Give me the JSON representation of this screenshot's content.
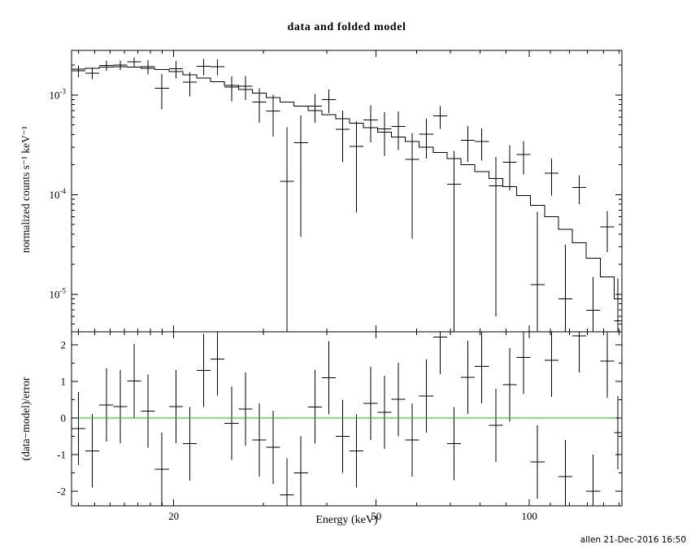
{
  "header": {
    "title": "data and folded model"
  },
  "footer": {
    "credit": "allen 21-Dec-2016 16:50"
  },
  "chart_data": {
    "type": "line",
    "title": "data and folded model",
    "xlabel": "Energy (keV)",
    "ylabel_top": "normalized counts s⁻¹ keV⁻¹",
    "ylabel_bottom": "(data−model)/error",
    "x_scale": "log",
    "xlim": [
      12.6,
      152
    ],
    "x_ticks_labeled": [
      20,
      50,
      100
    ],
    "x_ticks_minor": [
      13,
      14,
      15,
      16,
      17,
      18,
      19,
      30,
      40,
      60,
      70,
      80,
      90,
      110,
      120,
      130,
      140,
      150
    ],
    "top_panel": {
      "y_scale": "log",
      "ylim": [
        4.2e-06,
        0.0028
      ],
      "y_tick_exponents": [
        -3,
        -4,
        -5
      ]
    },
    "bottom_panel": {
      "y_scale": "linear",
      "ylim": [
        -2.4,
        2.35
      ],
      "y_ticks_labeled": [
        2,
        1,
        0,
        -1,
        -2
      ],
      "y_ticks_minor": [
        -1.5,
        -0.5,
        0.5,
        1.5
      ],
      "zero_line_color": "#00cc00",
      "residual_error": 1
    },
    "colors": {
      "data": "#000000",
      "model": "#000000",
      "axes": "#000000",
      "background": "#ffffff"
    },
    "bins": [
      {
        "e_lo": 12.6,
        "e_hi": 13.42,
        "model": 0.00182,
        "rate": 0.00175,
        "err": 0.000237
      },
      {
        "e_lo": 13.42,
        "e_hi": 14.29,
        "model": 0.00186,
        "rate": 0.00166,
        "err": 0.000223
      },
      {
        "e_lo": 14.29,
        "e_hi": 15.22,
        "model": 0.0019,
        "rate": 0.00198,
        "err": 0.000228
      },
      {
        "e_lo": 15.22,
        "e_hi": 16.21,
        "model": 0.00192,
        "rate": 0.00199,
        "err": 0.00023
      },
      {
        "e_lo": 16.21,
        "e_hi": 17.26,
        "model": 0.0019,
        "rate": 0.00215,
        "err": 0.000247
      },
      {
        "e_lo": 17.26,
        "e_hi": 18.38,
        "model": 0.00186,
        "rate": 0.00192,
        "err": 0.000316
      },
      {
        "e_lo": 18.38,
        "e_hi": 19.58,
        "model": 0.0018,
        "rate": 0.00117,
        "err": 0.00045
      },
      {
        "e_lo": 19.58,
        "e_hi": 20.85,
        "model": 0.00172,
        "rate": 0.00183,
        "err": 0.000361
      },
      {
        "e_lo": 20.85,
        "e_hi": 22.2,
        "model": 0.0016,
        "rate": 0.00134,
        "err": 0.000368
      },
      {
        "e_lo": 22.2,
        "e_hi": 23.64,
        "model": 0.00148,
        "rate": 0.00194,
        "err": 0.000355
      },
      {
        "e_lo": 23.64,
        "e_hi": 25.18,
        "model": 0.00136,
        "rate": 0.00193,
        "err": 0.000354
      },
      {
        "e_lo": 25.18,
        "e_hi": 26.81,
        "model": 0.00125,
        "rate": 0.0012,
        "err": 0.000338
      },
      {
        "e_lo": 26.81,
        "e_hi": 28.55,
        "model": 0.00114,
        "rate": 0.00122,
        "err": 0.000331
      },
      {
        "e_lo": 28.55,
        "e_hi": 30.41,
        "model": 0.00104,
        "rate": 0.000847,
        "err": 0.000322
      },
      {
        "e_lo": 30.41,
        "e_hi": 32.38,
        "model": 0.00094,
        "rate": 0.000692,
        "err": 0.00031
      },
      {
        "e_lo": 32.38,
        "e_hi": 34.48,
        "model": 0.00085,
        "rate": 0.000136,
        "err": 0.00034
      },
      {
        "e_lo": 34.48,
        "e_hi": 36.72,
        "model": 0.00077,
        "rate": 0.000331,
        "err": 0.000293
      },
      {
        "e_lo": 36.72,
        "e_hi": 39.11,
        "model": 0.0007,
        "rate": 0.000776,
        "err": 0.000252
      },
      {
        "e_lo": 39.11,
        "e_hi": 41.65,
        "model": 0.000635,
        "rate": 0.0009,
        "err": 0.000241
      },
      {
        "e_lo": 41.65,
        "e_hi": 44.35,
        "model": 0.000575,
        "rate": 0.000454,
        "err": 0.000242
      },
      {
        "e_lo": 44.35,
        "e_hi": 47.23,
        "model": 0.00052,
        "rate": 0.000305,
        "err": 0.000239
      },
      {
        "e_lo": 47.23,
        "e_hi": 50.3,
        "model": 0.00047,
        "rate": 0.00056,
        "err": 0.000226
      },
      {
        "e_lo": 50.3,
        "e_hi": 53.57,
        "model": 0.000425,
        "rate": 0.000457,
        "err": 0.000213
      },
      {
        "e_lo": 53.57,
        "e_hi": 57.05,
        "model": 0.00038,
        "rate": 0.000481,
        "err": 0.000201
      },
      {
        "e_lo": 57.05,
        "e_hi": 60.76,
        "model": 0.00034,
        "rate": 0.000226,
        "err": 0.00019
      },
      {
        "e_lo": 60.76,
        "e_hi": 64.71,
        "model": 0.0003,
        "rate": 0.000404,
        "err": 0.000174
      },
      {
        "e_lo": 64.71,
        "e_hi": 68.91,
        "model": 0.000265,
        "rate": 0.000615,
        "err": 0.000159
      },
      {
        "e_lo": 68.91,
        "e_hi": 73.39,
        "model": 0.00023,
        "rate": 0.000127,
        "err": 0.000147
      },
      {
        "e_lo": 73.39,
        "e_hi": 78.16,
        "model": 0.0002,
        "rate": 0.00035,
        "err": 0.000136
      },
      {
        "e_lo": 78.16,
        "e_hi": 83.24,
        "model": 0.00017,
        "rate": 0.000341,
        "err": 0.000122
      },
      {
        "e_lo": 83.24,
        "e_hi": 88.65,
        "model": 0.000145,
        "rate": 0.000122,
        "err": 0.000116
      },
      {
        "e_lo": 88.65,
        "e_hi": 94.41,
        "model": 0.00012,
        "rate": 0.000212,
        "err": 0.000102
      },
      {
        "e_lo": 94.41,
        "e_hi": 100.55,
        "model": 9.8e-05,
        "rate": 0.000252,
        "err": 9.31e-05
      },
      {
        "e_lo": 100.55,
        "e_hi": 107.08,
        "model": 7.8e-05,
        "rate": 1.25e-05,
        "err": 5.46e-05
      },
      {
        "e_lo": 107.08,
        "e_hi": 114.04,
        "model": 6e-05,
        "rate": 0.000164,
        "err": 6.6e-05
      },
      {
        "e_lo": 114.04,
        "e_hi": 121.45,
        "model": 4.5e-05,
        "rate": 9e-06,
        "err": 2.25e-05
      },
      {
        "e_lo": 121.45,
        "e_hi": 129.35,
        "model": 3.3e-05,
        "rate": 0.000118,
        "err": 3.8e-05
      },
      {
        "e_lo": 129.35,
        "e_hi": 137.76,
        "model": 2.3e-05,
        "rate": 6.9e-06,
        "err": 8.05e-06
      },
      {
        "e_lo": 137.76,
        "e_hi": 146.71,
        "model": 1.5e-05,
        "rate": 4.76e-05,
        "err": 2.1e-05
      },
      {
        "e_lo": 146.71,
        "e_hi": 152.0,
        "model": 9e-06,
        "rate": 5.4e-06,
        "err": 9e-06
      }
    ]
  }
}
